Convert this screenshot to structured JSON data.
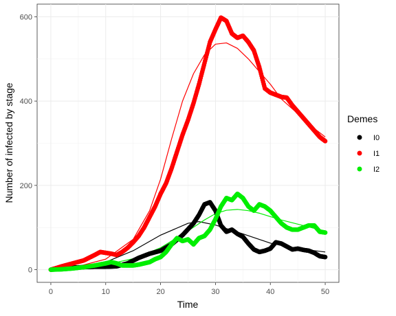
{
  "chart_data": {
    "type": "scatter",
    "title": "",
    "xlabel": "Time",
    "ylabel": "Number of infected by stage",
    "xlim": [
      -2.5,
      52.5
    ],
    "ylim": [
      -30,
      630
    ],
    "x_ticks": [
      0,
      10,
      20,
      30,
      40,
      50
    ],
    "y_ticks": [
      0,
      200,
      400,
      600
    ],
    "x_tick_labels": [
      "0",
      "10",
      "20",
      "30",
      "40",
      "50"
    ],
    "y_tick_labels": [
      "0",
      "200",
      "400",
      "600"
    ],
    "grid": true,
    "legend": {
      "title": "Demes",
      "position": "right"
    },
    "series": [
      {
        "name": "I0",
        "color": "#000000",
        "points": [
          [
            0,
            0
          ],
          [
            2,
            3
          ],
          [
            4,
            5
          ],
          [
            6,
            6
          ],
          [
            8,
            7
          ],
          [
            10,
            7
          ],
          [
            12,
            8
          ],
          [
            14,
            15
          ],
          [
            16,
            28
          ],
          [
            18,
            38
          ],
          [
            20,
            45
          ],
          [
            22,
            60
          ],
          [
            24,
            82
          ],
          [
            26,
            110
          ],
          [
            27,
            130
          ],
          [
            28,
            155
          ],
          [
            29,
            160
          ],
          [
            30,
            140
          ],
          [
            31,
            105
          ],
          [
            32,
            90
          ],
          [
            33,
            95
          ],
          [
            34,
            85
          ],
          [
            35,
            78
          ],
          [
            36,
            62
          ],
          [
            37,
            48
          ],
          [
            38,
            42
          ],
          [
            39,
            45
          ],
          [
            40,
            50
          ],
          [
            41,
            65
          ],
          [
            42,
            62
          ],
          [
            43,
            55
          ],
          [
            44,
            48
          ],
          [
            45,
            50
          ],
          [
            46,
            47
          ],
          [
            47,
            45
          ],
          [
            48,
            40
          ],
          [
            49,
            32
          ],
          [
            50,
            30
          ]
        ],
        "curve": [
          [
            0,
            0
          ],
          [
            5,
            5
          ],
          [
            10,
            18
          ],
          [
            15,
            45
          ],
          [
            20,
            82
          ],
          [
            25,
            110
          ],
          [
            27,
            114
          ],
          [
            30,
            106
          ],
          [
            35,
            85
          ],
          [
            40,
            63
          ],
          [
            45,
            50
          ],
          [
            50,
            42
          ]
        ]
      },
      {
        "name": "I1",
        "color": "#ff0000",
        "points": [
          [
            0,
            0
          ],
          [
            2,
            8
          ],
          [
            4,
            15
          ],
          [
            6,
            22
          ],
          [
            8,
            35
          ],
          [
            9,
            42
          ],
          [
            10,
            40
          ],
          [
            11,
            38
          ],
          [
            12,
            35
          ],
          [
            13,
            42
          ],
          [
            14,
            52
          ],
          [
            15,
            65
          ],
          [
            16,
            80
          ],
          [
            17,
            100
          ],
          [
            18,
            125
          ],
          [
            19,
            150
          ],
          [
            20,
            180
          ],
          [
            21,
            205
          ],
          [
            22,
            240
          ],
          [
            23,
            280
          ],
          [
            24,
            320
          ],
          [
            25,
            355
          ],
          [
            26,
            395
          ],
          [
            27,
            440
          ],
          [
            28,
            490
          ],
          [
            29,
            540
          ],
          [
            30,
            570
          ],
          [
            31,
            598
          ],
          [
            32,
            590
          ],
          [
            33,
            560
          ],
          [
            34,
            550
          ],
          [
            35,
            555
          ],
          [
            36,
            540
          ],
          [
            37,
            520
          ],
          [
            38,
            480
          ],
          [
            39,
            430
          ],
          [
            40,
            420
          ],
          [
            41,
            415
          ],
          [
            42,
            410
          ],
          [
            43,
            408
          ],
          [
            44,
            390
          ],
          [
            45,
            375
          ],
          [
            46,
            360
          ],
          [
            47,
            345
          ],
          [
            48,
            330
          ],
          [
            49,
            315
          ],
          [
            50,
            305
          ]
        ],
        "curve": [
          [
            0,
            0
          ],
          [
            5,
            8
          ],
          [
            10,
            25
          ],
          [
            15,
            72
          ],
          [
            18,
            140
          ],
          [
            20,
            215
          ],
          [
            22,
            310
          ],
          [
            24,
            400
          ],
          [
            26,
            465
          ],
          [
            28,
            510
          ],
          [
            30,
            535
          ],
          [
            32,
            538
          ],
          [
            34,
            525
          ],
          [
            36,
            500
          ],
          [
            38,
            470
          ],
          [
            40,
            440
          ],
          [
            42,
            405
          ],
          [
            45,
            370
          ],
          [
            48,
            335
          ],
          [
            50,
            315
          ]
        ]
      },
      {
        "name": "I2",
        "color": "#00ee00",
        "points": [
          [
            0,
            0
          ],
          [
            2,
            1
          ],
          [
            4,
            3
          ],
          [
            6,
            6
          ],
          [
            8,
            10
          ],
          [
            10,
            15
          ],
          [
            11,
            18
          ],
          [
            12,
            15
          ],
          [
            13,
            10
          ],
          [
            14,
            10
          ],
          [
            15,
            10
          ],
          [
            16,
            12
          ],
          [
            17,
            15
          ],
          [
            18,
            18
          ],
          [
            19,
            25
          ],
          [
            20,
            30
          ],
          [
            21,
            42
          ],
          [
            22,
            60
          ],
          [
            23,
            75
          ],
          [
            24,
            68
          ],
          [
            25,
            72
          ],
          [
            26,
            60
          ],
          [
            27,
            75
          ],
          [
            28,
            80
          ],
          [
            29,
            95
          ],
          [
            30,
            120
          ],
          [
            31,
            150
          ],
          [
            32,
            170
          ],
          [
            33,
            165
          ],
          [
            34,
            180
          ],
          [
            35,
            170
          ],
          [
            36,
            150
          ],
          [
            37,
            140
          ],
          [
            38,
            155
          ],
          [
            39,
            150
          ],
          [
            40,
            140
          ],
          [
            41,
            125
          ],
          [
            42,
            110
          ],
          [
            43,
            100
          ],
          [
            44,
            95
          ],
          [
            45,
            95
          ],
          [
            46,
            100
          ],
          [
            47,
            105
          ],
          [
            48,
            105
          ],
          [
            49,
            90
          ],
          [
            50,
            88
          ]
        ],
        "curve": [
          [
            0,
            0
          ],
          [
            5,
            4
          ],
          [
            10,
            12
          ],
          [
            15,
            26
          ],
          [
            20,
            52
          ],
          [
            25,
            92
          ],
          [
            28,
            118
          ],
          [
            30,
            133
          ],
          [
            32,
            141
          ],
          [
            34,
            143
          ],
          [
            36,
            140
          ],
          [
            38,
            134
          ],
          [
            40,
            126
          ],
          [
            42,
            118
          ],
          [
            45,
            108
          ],
          [
            48,
            98
          ],
          [
            50,
            92
          ]
        ]
      }
    ]
  }
}
